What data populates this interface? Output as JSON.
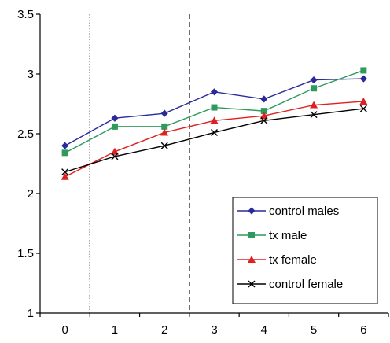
{
  "chart_data": {
    "type": "line",
    "title": "",
    "xlabel": "",
    "ylabel": "",
    "categories": [
      "0",
      "1",
      "2",
      "3",
      "4",
      "5",
      "6"
    ],
    "ylim": [
      1,
      3.5
    ],
    "yticks": [
      "1",
      "1.5",
      "2",
      "2.5",
      "3",
      "3.5"
    ],
    "grid": false,
    "legend_position": "bottom-right",
    "reference_lines": [
      {
        "between": [
          "0",
          "1"
        ],
        "style": "dotted"
      },
      {
        "between": [
          "2",
          "3"
        ],
        "style": "dashed"
      }
    ],
    "series": [
      {
        "name": "control males",
        "color": "#2a2a9a",
        "marker": "diamond",
        "values": [
          2.4,
          2.63,
          2.67,
          2.85,
          2.79,
          2.95,
          2.96
        ]
      },
      {
        "name": "tx male",
        "color": "#2e9a5c",
        "marker": "square",
        "values": [
          2.34,
          2.56,
          2.56,
          2.72,
          2.69,
          2.88,
          3.03
        ]
      },
      {
        "name": "tx female",
        "color": "#e02020",
        "marker": "triangle",
        "values": [
          2.14,
          2.35,
          2.51,
          2.61,
          2.65,
          2.74,
          2.77
        ]
      },
      {
        "name": "control female",
        "color": "#000000",
        "marker": "x",
        "values": [
          2.18,
          2.31,
          2.4,
          2.51,
          2.61,
          2.66,
          2.71
        ]
      }
    ]
  }
}
